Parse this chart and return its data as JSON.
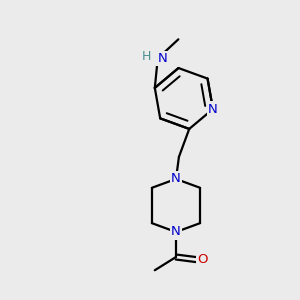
{
  "bg_color": "#ebebeb",
  "bond_color": "#000000",
  "N_color": "#0000cc",
  "O_color": "#cc0000",
  "H_color": "#4a9090",
  "line_width": 1.6,
  "font_size_atom": 9.5,
  "figsize": [
    3.0,
    3.0
  ],
  "dpi": 100,
  "xlim": [
    0,
    10
  ],
  "ylim": [
    0,
    10
  ]
}
